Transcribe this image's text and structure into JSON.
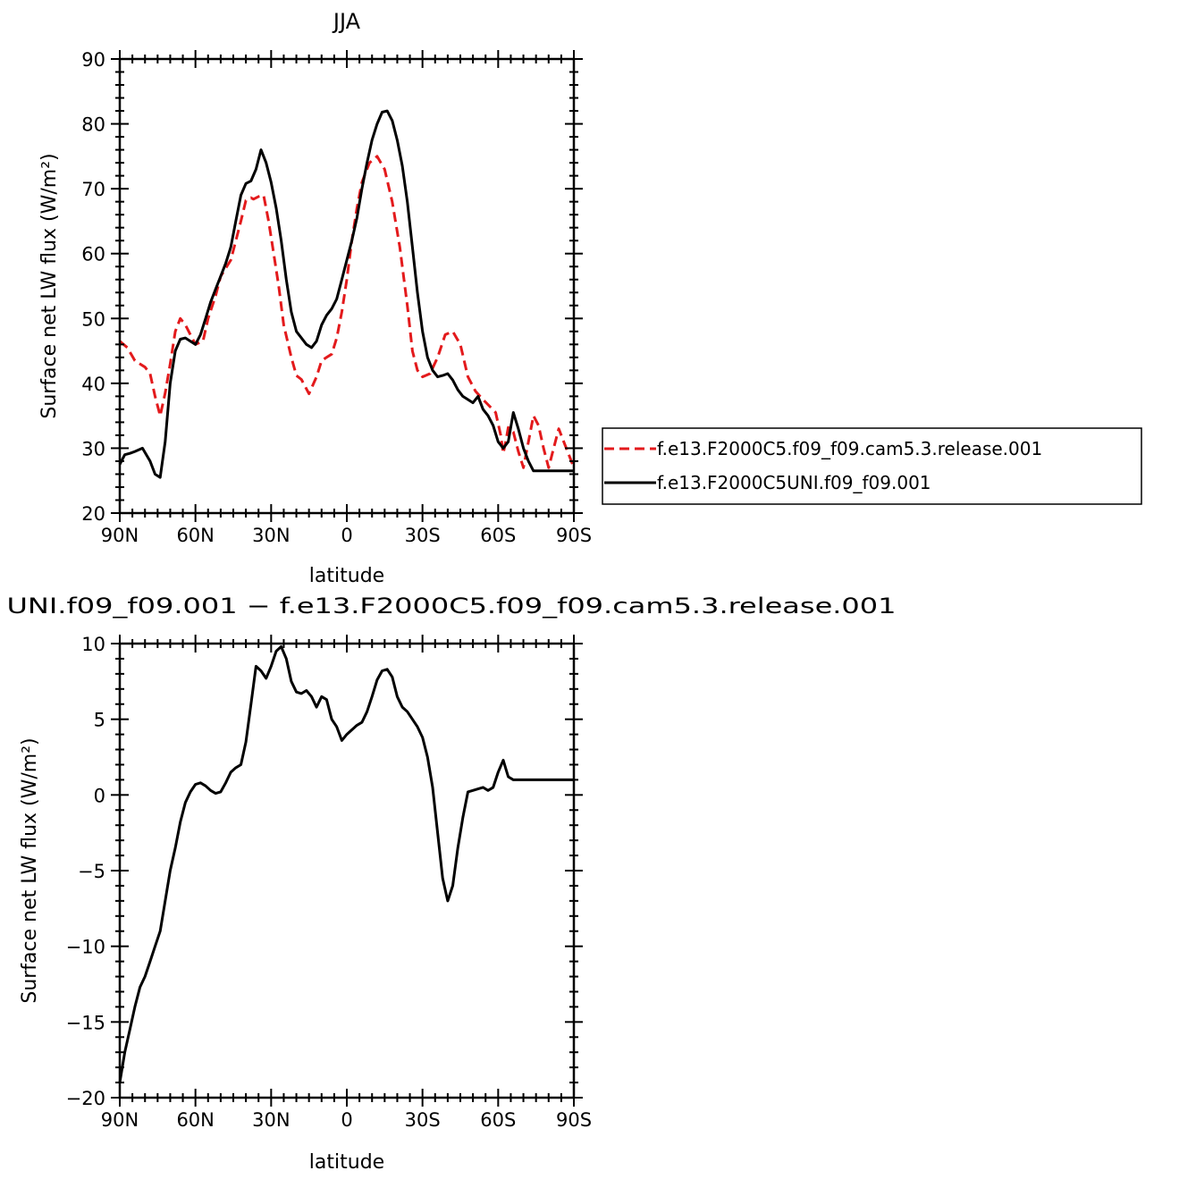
{
  "chart_data": [
    {
      "type": "line",
      "title": "JJA",
      "xlabel": "latitude",
      "ylabel": "Surface net LW flux (W/m²)",
      "x_tick_values": [
        90,
        60,
        30,
        0,
        -30,
        -60,
        -90
      ],
      "x_tick_labels": [
        "90N",
        "60N",
        "30N",
        "0",
        "30S",
        "60S",
        "90S"
      ],
      "y_tick_values": [
        20,
        30,
        40,
        50,
        60,
        70,
        80,
        90
      ],
      "y_tick_labels": [
        "20",
        "30",
        "40",
        "50",
        "60",
        "70",
        "80",
        "90"
      ],
      "xlim": [
        90,
        -90
      ],
      "ylim": [
        20,
        90
      ],
      "grid": false,
      "legend_position": "right",
      "series": [
        {
          "name": "f.e13.F2000C5.f09_f09.cam5.3.release.001",
          "color": "#e31a1c",
          "dash": "dashed",
          "x": [
            90,
            87,
            84,
            80,
            78,
            76,
            74,
            72,
            70,
            68,
            66,
            64,
            62,
            60,
            57,
            55,
            52,
            50,
            46,
            42,
            40,
            38,
            37,
            35,
            33,
            31,
            29,
            27,
            25,
            22,
            20,
            18,
            15,
            12,
            10,
            8,
            6,
            4,
            2,
            0,
            -2,
            -4,
            -6,
            -9,
            -12,
            -15,
            -18,
            -21,
            -24,
            -26,
            -28,
            -30,
            -33,
            -36,
            -39,
            -42,
            -45,
            -48,
            -51,
            -54,
            -57,
            -59,
            -61,
            -62,
            -63,
            -64,
            -66,
            -68,
            -70,
            -72,
            -74,
            -76,
            -78,
            -80,
            -82,
            -84,
            -86,
            -88,
            -90
          ],
          "y": [
            46.5,
            45.5,
            43.5,
            42.5,
            41.5,
            38,
            35,
            38.5,
            43,
            48,
            50,
            49,
            47.5,
            46,
            46.5,
            50,
            53.5,
            56.5,
            59,
            65,
            68.2,
            68.6,
            68.4,
            68.8,
            69,
            65,
            60,
            55,
            49,
            44,
            41.2,
            40.6,
            38.4,
            41,
            43.5,
            44,
            44.5,
            47,
            51,
            56,
            62,
            67,
            71,
            74,
            75,
            73,
            68,
            61,
            52,
            45,
            42,
            41,
            41.5,
            44,
            47.5,
            48,
            46,
            41,
            38.8,
            37.5,
            36.3,
            35.5,
            32,
            29.2,
            31,
            33.2,
            32.5,
            29.5,
            27,
            31,
            35,
            33.5,
            30,
            27,
            30,
            33,
            31,
            29,
            27
          ]
        },
        {
          "name": "f.e13.F2000C5UNI.f09_f09.001",
          "color": "#000000",
          "dash": "solid",
          "x": [
            90,
            88,
            86,
            84,
            81,
            78,
            76,
            74,
            72,
            70,
            68,
            66,
            64,
            62,
            60,
            58,
            56,
            54,
            52,
            50,
            48,
            46,
            44,
            42,
            40,
            38,
            36,
            34,
            32,
            30,
            28,
            26,
            24,
            22,
            20,
            18,
            16,
            14,
            12,
            10,
            8,
            6,
            4,
            2,
            0,
            -2,
            -4,
            -6,
            -8,
            -10,
            -12,
            -14,
            -16,
            -18,
            -20,
            -22,
            -24,
            -26,
            -28,
            -30,
            -32,
            -34,
            -36,
            -38,
            -40,
            -42,
            -44,
            -46,
            -48,
            -50,
            -52,
            -54,
            -56,
            -58,
            -60,
            -62,
            -64,
            -66,
            -68,
            -70,
            -72,
            -74,
            -76,
            -78,
            -80,
            -82,
            -84,
            -86,
            -88,
            -90
          ],
          "y": [
            27.5,
            29,
            29.2,
            29.5,
            30,
            28,
            26,
            25.5,
            31,
            40,
            45,
            46.8,
            47,
            46.5,
            46,
            47.5,
            50,
            52.5,
            54.5,
            56.5,
            58.5,
            61,
            65,
            69,
            70.8,
            71.2,
            73,
            76,
            74,
            71,
            67,
            62,
            56,
            51,
            48,
            47,
            46,
            45.5,
            46.5,
            49,
            50.5,
            51.5,
            53,
            56,
            59,
            62,
            65.5,
            70,
            74,
            77.5,
            80,
            81.8,
            82,
            80.5,
            77.5,
            73.5,
            68,
            61,
            54,
            48,
            44,
            42,
            41,
            41.2,
            41.5,
            40.5,
            39,
            38,
            37.5,
            37,
            38,
            36,
            35,
            33.5,
            31,
            30,
            31,
            35.5,
            33,
            30,
            28,
            26.5,
            26.5,
            26.5,
            26.5,
            26.5,
            26.5,
            26.5,
            26.5,
            26.5
          ]
        }
      ]
    },
    {
      "type": "line",
      "title": "UNI.f09_f09.001 − f.e13.F2000C5.f09_f09.cam5.3.release.001",
      "xlabel": "latitude",
      "ylabel": "Surface net LW flux (W/m²)",
      "x_tick_values": [
        90,
        60,
        30,
        0,
        -30,
        -60,
        -90
      ],
      "x_tick_labels": [
        "90N",
        "60N",
        "30N",
        "0",
        "30S",
        "60S",
        "90S"
      ],
      "y_tick_values": [
        -20,
        -15,
        -10,
        -5,
        0,
        5,
        10
      ],
      "y_tick_labels": [
        "−20",
        "−15",
        "−10",
        "−5",
        "0",
        "5",
        "10"
      ],
      "xlim": [
        90,
        -90
      ],
      "ylim": [
        -20,
        10
      ],
      "grid": false,
      "series": [
        {
          "name": "",
          "color": "#000000",
          "dash": "solid",
          "x": [
            90,
            88,
            86,
            84,
            82,
            80,
            78,
            76,
            74,
            72,
            70,
            68,
            66,
            64,
            62,
            60,
            58,
            56,
            54,
            52,
            50,
            48,
            46,
            44,
            42,
            40,
            38,
            36,
            34,
            32,
            30,
            28,
            26,
            24,
            22,
            20,
            18,
            16,
            14,
            12,
            10,
            8,
            6,
            4,
            2,
            0,
            -2,
            -4,
            -6,
            -8,
            -10,
            -12,
            -14,
            -16,
            -18,
            -20,
            -22,
            -24,
            -26,
            -28,
            -30,
            -32,
            -34,
            -36,
            -38,
            -40,
            -42,
            -44,
            -46,
            -48,
            -50,
            -52,
            -54,
            -56,
            -58,
            -60,
            -62,
            -64,
            -66,
            -68,
            -70,
            -72,
            -74,
            -76,
            -78,
            -80,
            -82,
            -84,
            -86,
            -88,
            -90
          ],
          "y": [
            -19,
            -17,
            -15.5,
            -14,
            -12.7,
            -12,
            -11,
            -10,
            -9,
            -7,
            -5,
            -3.5,
            -1.8,
            -0.5,
            0.2,
            0.7,
            0.8,
            0.6,
            0.3,
            0.1,
            0.2,
            0.8,
            1.5,
            1.8,
            2,
            3.5,
            6,
            8.5,
            8.2,
            7.7,
            8.5,
            9.5,
            9.8,
            9,
            7.5,
            6.8,
            6.7,
            6.9,
            6.5,
            5.8,
            6.5,
            6.3,
            5,
            4.5,
            3.6,
            4,
            4.3,
            4.6,
            4.8,
            5.5,
            6.5,
            7.6,
            8.2,
            8.3,
            7.8,
            6.5,
            5.8,
            5.5,
            5,
            4.5,
            3.8,
            2.5,
            0.5,
            -2.5,
            -5.5,
            -7,
            -6,
            -3.5,
            -1.5,
            0.2,
            0.3,
            0.4,
            0.5,
            0.3,
            0.5,
            1.5,
            2.3,
            1.2,
            1,
            1,
            1,
            1,
            1,
            1,
            1,
            1,
            1,
            1,
            1,
            1,
            1
          ]
        }
      ]
    }
  ]
}
